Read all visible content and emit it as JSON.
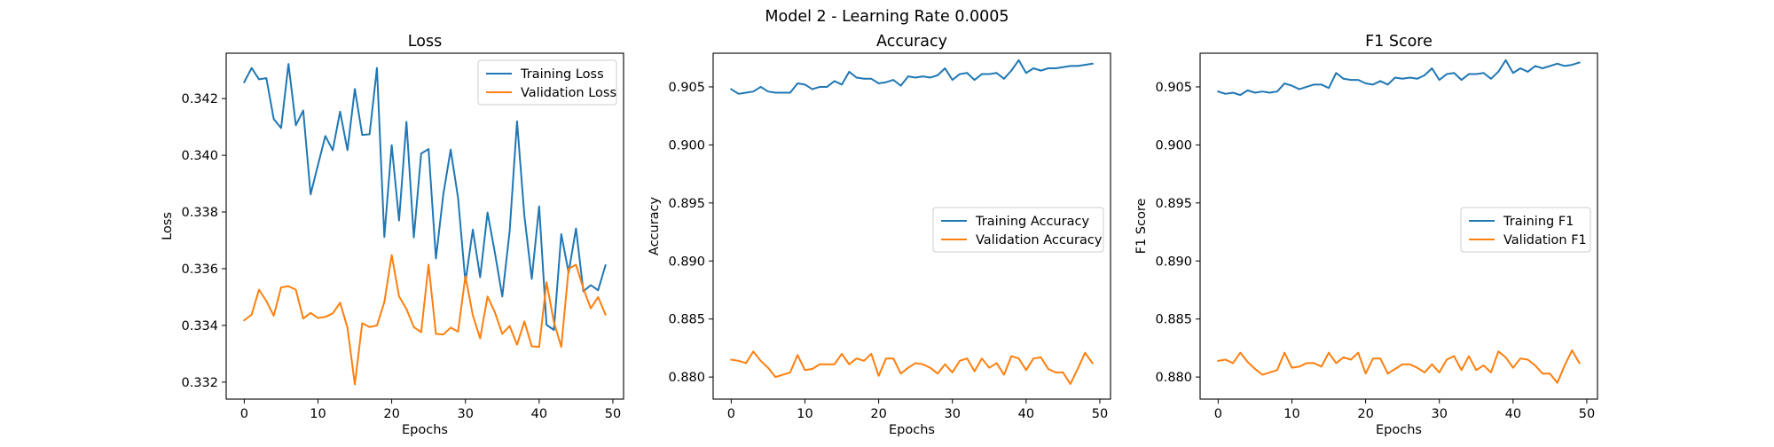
{
  "figure": {
    "suptitle": "Model 2 - Learning Rate 0.0005"
  },
  "chart_data": [
    {
      "type": "line",
      "title": "Loss",
      "xlabel": "Epochs",
      "ylabel": "Loss",
      "xlim": [
        -2.45,
        51.45
      ],
      "ylim": [
        0.3314,
        0.3436
      ],
      "xticks": [
        0,
        10,
        20,
        30,
        40,
        50
      ],
      "yticks": [
        0.332,
        0.334,
        0.336,
        0.338,
        0.34,
        0.342
      ],
      "ytick_labels": [
        "0.332",
        "0.334",
        "0.336",
        "0.338",
        "0.340",
        "0.342"
      ],
      "legend_position": "upper right",
      "grid": false,
      "x": [
        0,
        1,
        2,
        3,
        4,
        5,
        6,
        7,
        8,
        9,
        10,
        11,
        12,
        13,
        14,
        15,
        16,
        17,
        18,
        19,
        20,
        21,
        22,
        23,
        24,
        25,
        26,
        27,
        28,
        29,
        30,
        31,
        32,
        33,
        34,
        35,
        36,
        37,
        38,
        39,
        40,
        41,
        42,
        43,
        44,
        45,
        46,
        47,
        48,
        49
      ],
      "series": [
        {
          "name": "Training Loss",
          "color": "#1f77b4",
          "values": [
            0.34258,
            0.34308,
            0.34268,
            0.34272,
            0.34128,
            0.34096,
            0.34322,
            0.34106,
            0.34158,
            0.33862,
            0.33966,
            0.34068,
            0.34018,
            0.34154,
            0.34018,
            0.34234,
            0.34072,
            0.34074,
            0.34308,
            0.33712,
            0.34036,
            0.3377,
            0.34118,
            0.3371,
            0.34006,
            0.34022,
            0.33636,
            0.33862,
            0.3402,
            0.3385,
            0.33552,
            0.33738,
            0.3357,
            0.33798,
            0.33656,
            0.33502,
            0.33732,
            0.3412,
            0.33786,
            0.33564,
            0.3382,
            0.33402,
            0.33384,
            0.33722,
            0.33586,
            0.33742,
            0.3352,
            0.33542,
            0.33524,
            0.33612
          ]
        },
        {
          "name": "Validation Loss",
          "color": "#ff7f0e",
          "values": [
            0.33418,
            0.33438,
            0.33526,
            0.33486,
            0.33434,
            0.33534,
            0.33538,
            0.33526,
            0.33424,
            0.33444,
            0.33426,
            0.3343,
            0.33442,
            0.3348,
            0.33392,
            0.33192,
            0.33408,
            0.33394,
            0.334,
            0.33482,
            0.33648,
            0.33502,
            0.33458,
            0.33394,
            0.33376,
            0.33614,
            0.3337,
            0.33368,
            0.33392,
            0.33378,
            0.33574,
            0.33436,
            0.33354,
            0.33502,
            0.33446,
            0.3337,
            0.33398,
            0.33332,
            0.33414,
            0.33326,
            0.33324,
            0.33552,
            0.33412,
            0.33324,
            0.336,
            0.33614,
            0.3353,
            0.3346,
            0.335,
            0.33438
          ]
        }
      ]
    },
    {
      "type": "line",
      "title": "Accuracy",
      "xlabel": "Epochs",
      "ylabel": "Accuracy",
      "xlim": [
        -2.45,
        51.45
      ],
      "ylim": [
        0.8781,
        0.9079
      ],
      "xticks": [
        0,
        10,
        20,
        30,
        40,
        50
      ],
      "yticks": [
        0.88,
        0.885,
        0.89,
        0.895,
        0.9,
        0.905
      ],
      "ytick_labels": [
        "0.880",
        "0.885",
        "0.890",
        "0.895",
        "0.900",
        "0.905"
      ],
      "legend_position": "center right",
      "grid": false,
      "x": [
        0,
        1,
        2,
        3,
        4,
        5,
        6,
        7,
        8,
        9,
        10,
        11,
        12,
        13,
        14,
        15,
        16,
        17,
        18,
        19,
        20,
        21,
        22,
        23,
        24,
        25,
        26,
        27,
        28,
        29,
        30,
        31,
        32,
        33,
        34,
        35,
        36,
        37,
        38,
        39,
        40,
        41,
        42,
        43,
        44,
        45,
        46,
        47,
        48,
        49
      ],
      "series": [
        {
          "name": "Training Accuracy",
          "color": "#1f77b4",
          "values": [
            0.9048,
            0.9044,
            0.9045,
            0.9046,
            0.905,
            0.9046,
            0.9045,
            0.9045,
            0.9045,
            0.9053,
            0.9052,
            0.9048,
            0.905,
            0.905,
            0.9055,
            0.9052,
            0.9063,
            0.9058,
            0.9057,
            0.9057,
            0.9053,
            0.9054,
            0.9056,
            0.9051,
            0.9059,
            0.9058,
            0.9059,
            0.9058,
            0.906,
            0.9066,
            0.9056,
            0.9061,
            0.9062,
            0.9056,
            0.9061,
            0.9061,
            0.9062,
            0.9057,
            0.9064,
            0.9073,
            0.9062,
            0.9066,
            0.9064,
            0.9066,
            0.9066,
            0.9067,
            0.9068,
            0.9068,
            0.9069,
            0.907
          ]
        },
        {
          "name": "Validation Accuracy",
          "color": "#ff7f0e",
          "values": [
            0.8815,
            0.8814,
            0.8812,
            0.8822,
            0.8814,
            0.8808,
            0.88,
            0.8802,
            0.8804,
            0.8819,
            0.8806,
            0.8807,
            0.8811,
            0.8811,
            0.8811,
            0.882,
            0.8811,
            0.8816,
            0.8814,
            0.882,
            0.8801,
            0.8816,
            0.8816,
            0.8803,
            0.8808,
            0.8812,
            0.8811,
            0.8808,
            0.8803,
            0.8811,
            0.8804,
            0.8814,
            0.8816,
            0.8805,
            0.8816,
            0.8808,
            0.8812,
            0.8802,
            0.8818,
            0.8816,
            0.8806,
            0.8816,
            0.8817,
            0.8807,
            0.8804,
            0.8804,
            0.8794,
            0.8807,
            0.8821,
            0.8812
          ]
        }
      ]
    },
    {
      "type": "line",
      "title": "F1 Score",
      "xlabel": "Epochs",
      "ylabel": "F1 Score",
      "xlim": [
        -2.45,
        51.45
      ],
      "ylim": [
        0.8781,
        0.9079
      ],
      "xticks": [
        0,
        10,
        20,
        30,
        40,
        50
      ],
      "yticks": [
        0.88,
        0.885,
        0.89,
        0.895,
        0.9,
        0.905
      ],
      "ytick_labels": [
        "0.880",
        "0.885",
        "0.890",
        "0.895",
        "0.900",
        "0.905"
      ],
      "legend_position": "center right",
      "grid": false,
      "x": [
        0,
        1,
        2,
        3,
        4,
        5,
        6,
        7,
        8,
        9,
        10,
        11,
        12,
        13,
        14,
        15,
        16,
        17,
        18,
        19,
        20,
        21,
        22,
        23,
        24,
        25,
        26,
        27,
        28,
        29,
        30,
        31,
        32,
        33,
        34,
        35,
        36,
        37,
        38,
        39,
        40,
        41,
        42,
        43,
        44,
        45,
        46,
        47,
        48,
        49
      ],
      "series": [
        {
          "name": "Training F1",
          "color": "#1f77b4",
          "values": [
            0.9046,
            0.9044,
            0.9045,
            0.9043,
            0.9047,
            0.9045,
            0.9046,
            0.9045,
            0.9046,
            0.9053,
            0.9051,
            0.9048,
            0.905,
            0.9052,
            0.9052,
            0.9049,
            0.9062,
            0.9057,
            0.9056,
            0.9056,
            0.9053,
            0.9052,
            0.9055,
            0.9052,
            0.9058,
            0.9057,
            0.9058,
            0.9057,
            0.906,
            0.9066,
            0.9056,
            0.9061,
            0.9062,
            0.9056,
            0.9061,
            0.9061,
            0.9062,
            0.9057,
            0.9063,
            0.9073,
            0.9062,
            0.9066,
            0.9063,
            0.9068,
            0.9066,
            0.9068,
            0.907,
            0.9068,
            0.9069,
            0.9071
          ]
        },
        {
          "name": "Validation F1",
          "color": "#ff7f0e",
          "values": [
            0.8814,
            0.8815,
            0.8812,
            0.8821,
            0.8813,
            0.8807,
            0.8802,
            0.8804,
            0.8806,
            0.8821,
            0.8808,
            0.8809,
            0.8812,
            0.8812,
            0.8809,
            0.8821,
            0.8812,
            0.8817,
            0.8815,
            0.8821,
            0.8803,
            0.8816,
            0.8816,
            0.8803,
            0.8807,
            0.8811,
            0.8811,
            0.8808,
            0.8804,
            0.8811,
            0.8804,
            0.8815,
            0.8818,
            0.8806,
            0.8818,
            0.8806,
            0.881,
            0.8804,
            0.8822,
            0.8817,
            0.8808,
            0.8816,
            0.8815,
            0.881,
            0.8803,
            0.8803,
            0.8795,
            0.881,
            0.8823,
            0.8812
          ]
        }
      ]
    }
  ]
}
